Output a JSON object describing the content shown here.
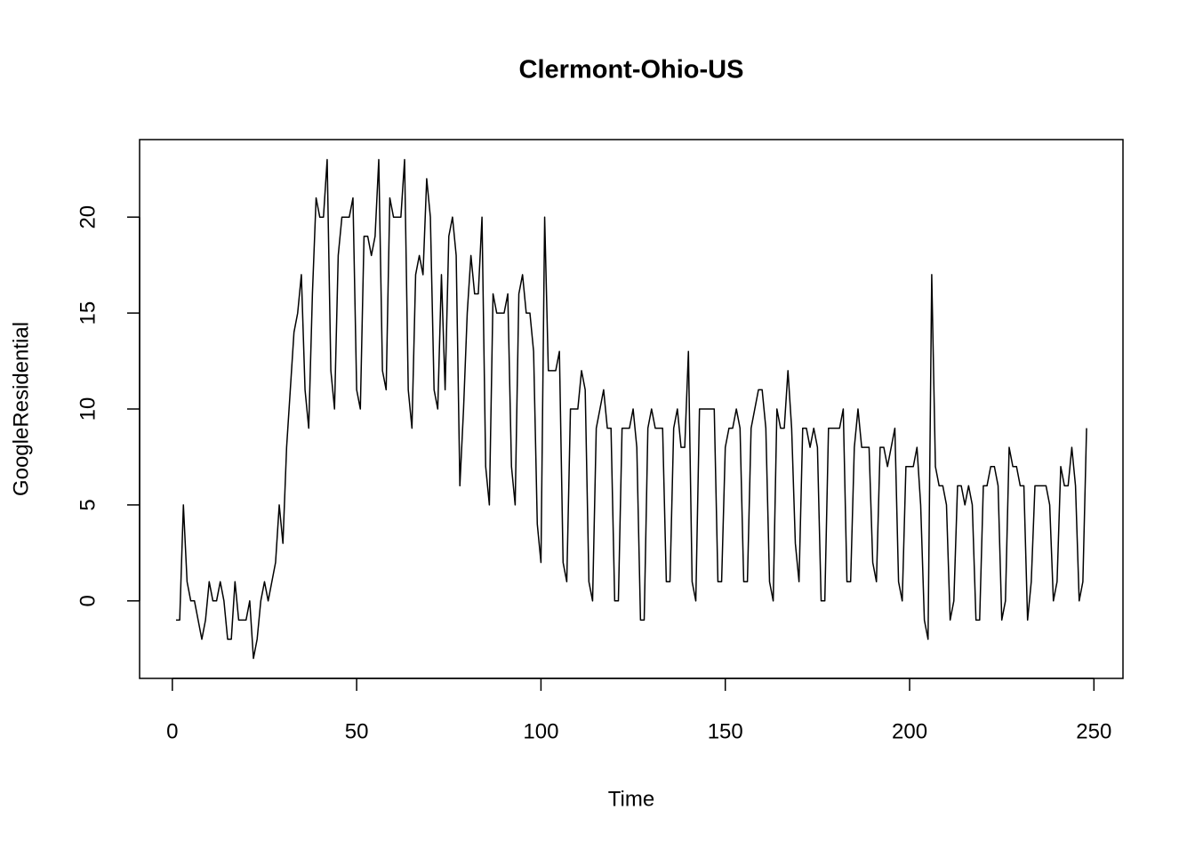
{
  "chart_data": {
    "type": "line",
    "title": "Clermont-Ohio-US",
    "x_label": "Time",
    "y_label": "GoogleResidential",
    "color": "#000000",
    "x": [
      1,
      2,
      3,
      4,
      5,
      6,
      7,
      8,
      9,
      10,
      11,
      12,
      13,
      14,
      15,
      16,
      17,
      18,
      19,
      20,
      21,
      22,
      23,
      24,
      25,
      26,
      27,
      28,
      29,
      30,
      31,
      32,
      33,
      34,
      35,
      36,
      37,
      38,
      39,
      40,
      41,
      42,
      43,
      44,
      45,
      46,
      47,
      48,
      49,
      50,
      51,
      52,
      53,
      54,
      55,
      56,
      57,
      58,
      59,
      60,
      61,
      62,
      63,
      64,
      65,
      66,
      67,
      68,
      69,
      70,
      71,
      72,
      73,
      74,
      75,
      76,
      77,
      78,
      79,
      80,
      81,
      82,
      83,
      84,
      85,
      86,
      87,
      88,
      89,
      90,
      91,
      92,
      93,
      94,
      95,
      96,
      97,
      98,
      99,
      100,
      101,
      102,
      103,
      104,
      105,
      106,
      107,
      108,
      109,
      110,
      111,
      112,
      113,
      114,
      115,
      116,
      117,
      118,
      119,
      120,
      121,
      122,
      123,
      124,
      125,
      126,
      127,
      128,
      129,
      130,
      131,
      132,
      133,
      134,
      135,
      136,
      137,
      138,
      139,
      140,
      141,
      142,
      143,
      144,
      145,
      146,
      147,
      148,
      149,
      150,
      151,
      152,
      153,
      154,
      155,
      156,
      157,
      158,
      159,
      160,
      161,
      162,
      163,
      164,
      165,
      166,
      167,
      168,
      169,
      170,
      171,
      172,
      173,
      174,
      175,
      176,
      177,
      178,
      179,
      180,
      181,
      182,
      183,
      184,
      185,
      186,
      187,
      188,
      189,
      190,
      191,
      192,
      193,
      194,
      195,
      196,
      197,
      198,
      199,
      200,
      201,
      202,
      203,
      204,
      205,
      206,
      207,
      208,
      209,
      210,
      211,
      212,
      213,
      214,
      215,
      216,
      217,
      218,
      219,
      220,
      221,
      222,
      223,
      224,
      225,
      226,
      227,
      228,
      229,
      230,
      231,
      232,
      233,
      234,
      235,
      236,
      237,
      238,
      239,
      240,
      241,
      242,
      243,
      244,
      245,
      246,
      247,
      248
    ],
    "values": [
      -1,
      -1,
      5,
      1,
      0,
      0,
      -1,
      -2,
      -1,
      1,
      0,
      0,
      1,
      0,
      -2,
      -2,
      1,
      -1,
      -1,
      -1,
      0,
      -3,
      -2,
      0,
      1,
      0,
      1,
      2,
      5,
      3,
      8,
      11,
      14,
      15,
      17,
      11,
      9,
      16,
      21,
      20,
      20,
      23,
      12,
      10,
      18,
      20,
      20,
      20,
      21,
      11,
      10,
      19,
      19,
      18,
      19,
      23,
      12,
      11,
      21,
      20,
      20,
      20,
      23,
      11,
      9,
      17,
      18,
      17,
      22,
      20,
      11,
      10,
      17,
      11,
      19,
      20,
      18,
      6,
      10,
      15,
      18,
      16,
      16,
      20,
      7,
      5,
      16,
      15,
      15,
      15,
      16,
      7,
      5,
      16,
      17,
      15,
      15,
      13,
      4,
      2,
      20,
      12,
      12,
      12,
      13,
      2,
      1,
      10,
      10,
      10,
      12,
      11,
      1,
      0,
      9,
      10,
      11,
      9,
      9,
      0,
      0,
      9,
      9,
      9,
      10,
      8,
      -1,
      -1,
      9,
      10,
      9,
      9,
      9,
      1,
      1,
      9,
      10,
      8,
      8,
      13,
      1,
      0,
      10,
      10,
      10,
      10,
      10,
      1,
      1,
      8,
      9,
      9,
      10,
      9,
      1,
      1,
      9,
      10,
      11,
      11,
      9,
      1,
      0,
      10,
      9,
      9,
      12,
      9,
      3,
      1,
      9,
      9,
      8,
      9,
      8,
      0,
      0,
      9,
      9,
      9,
      9,
      10,
      1,
      1,
      8,
      10,
      8,
      8,
      8,
      2,
      1,
      8,
      8,
      7,
      8,
      9,
      1,
      0,
      7,
      7,
      7,
      8,
      5,
      -1,
      -2,
      17,
      7,
      6,
      6,
      5,
      -1,
      0,
      6,
      6,
      5,
      6,
      5,
      -1,
      -1,
      6,
      6,
      7,
      7,
      6,
      -1,
      0,
      8,
      7,
      7,
      6,
      6,
      -1,
      1,
      6,
      6,
      6,
      6,
      5,
      0,
      1,
      7,
      6,
      6,
      8,
      6,
      0,
      1,
      9
    ],
    "xlim": [
      -8.88,
      257.88
    ],
    "ylim": [
      -4.04,
      24.04
    ],
    "xticks": [
      0,
      50,
      100,
      150,
      200,
      250
    ],
    "yticks": [
      0,
      5,
      10,
      15,
      20
    ]
  }
}
